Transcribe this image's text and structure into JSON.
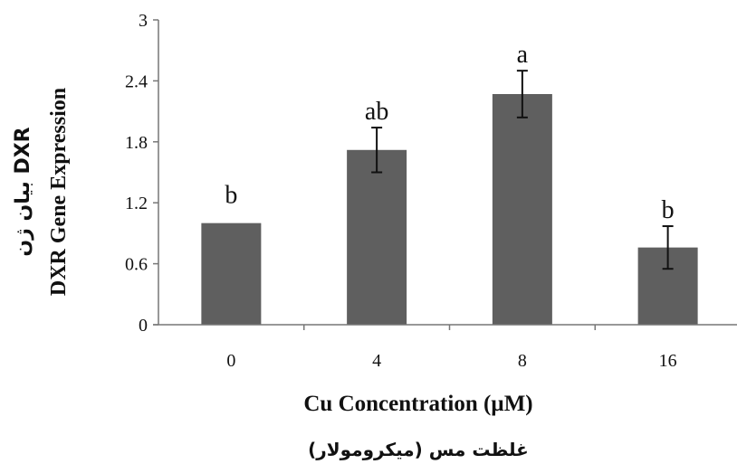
{
  "chart_data": {
    "type": "bar",
    "categories": [
      "0",
      "4",
      "8",
      "16"
    ],
    "values": [
      1.0,
      1.72,
      2.27,
      0.76
    ],
    "errors": [
      0,
      0.22,
      0.23,
      0.21
    ],
    "significance": [
      "b",
      "ab",
      "a",
      "b"
    ],
    "xlabel": "Cu Concentration (µM)",
    "xlabel_secondary": "غلظت مس (میکرومولار)",
    "ylabel": "DXR Gene Expression",
    "ylabel_secondary": "بیان ژن DXR",
    "ylim": [
      0,
      3
    ],
    "yticks": [
      "0",
      "0.6",
      "1.2",
      "1.8",
      "2.4",
      "3"
    ],
    "bar_color": "#5f5f5f",
    "grid": false
  }
}
